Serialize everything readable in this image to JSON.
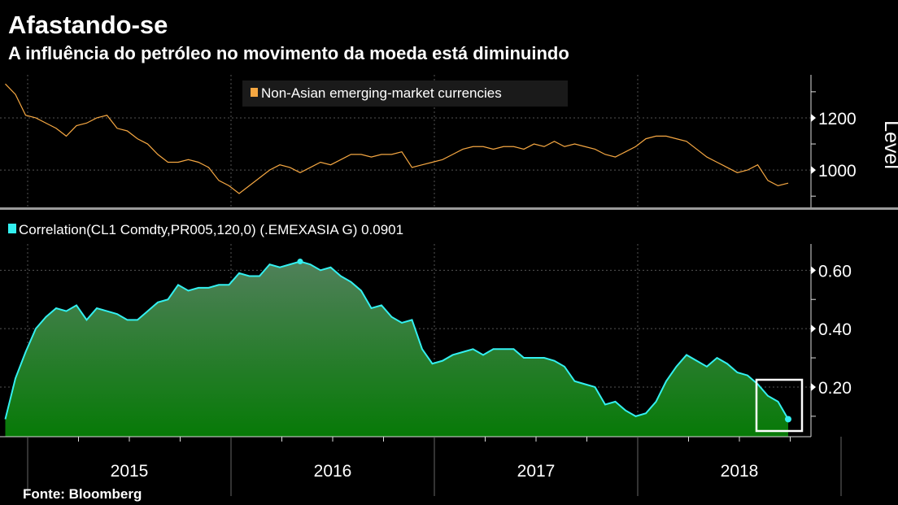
{
  "title": "Afastando-se",
  "subtitle": "A influência do petróleo no movimento da moeda está diminuindo",
  "source": "Fonte: Bloomberg",
  "colors": {
    "level": "#f5a742",
    "corr": "#33f0f0",
    "fill_top": "#50805a",
    "fill_bottom": "#077a07",
    "bg": "#000000"
  },
  "chart_data": [
    {
      "type": "line",
      "series_name": "Non-Asian emerging-market currencies",
      "ylabel": "Level",
      "yticks": [
        1000,
        1200
      ],
      "ytick_labels": [
        "1000",
        "1200"
      ],
      "ylim": [
        857,
        1365
      ],
      "x_start": 2014.89,
      "x_step": 0.05,
      "values": [
        1330,
        1290,
        1210,
        1200,
        1180,
        1160,
        1130,
        1170,
        1180,
        1200,
        1210,
        1160,
        1150,
        1120,
        1100,
        1060,
        1030,
        1030,
        1040,
        1030,
        1010,
        960,
        940,
        910,
        940,
        970,
        1000,
        1020,
        1010,
        990,
        1010,
        1030,
        1020,
        1040,
        1060,
        1060,
        1050,
        1060,
        1060,
        1070,
        1010,
        1020,
        1030,
        1040,
        1060,
        1080,
        1090,
        1090,
        1080,
        1090,
        1090,
        1080,
        1100,
        1090,
        1110,
        1090,
        1100,
        1090,
        1080,
        1060,
        1050,
        1070,
        1090,
        1120,
        1130,
        1130,
        1120,
        1110,
        1080,
        1050,
        1030,
        1010,
        990,
        1000,
        1020,
        960,
        940,
        950
      ]
    },
    {
      "type": "area",
      "series_name": "Correlation(CL1 Comdty,PR005,120,0) (.EMEXASIA G) 0.0901",
      "yticks": [
        0.2,
        0.4,
        0.6
      ],
      "ytick_labels": [
        "0.20",
        "0.40",
        "0.60"
      ],
      "ylim": [
        0.03,
        0.69
      ],
      "x_start": 2014.89,
      "x_step": 0.05,
      "values": [
        0.09,
        0.23,
        0.32,
        0.4,
        0.44,
        0.47,
        0.46,
        0.48,
        0.43,
        0.47,
        0.46,
        0.45,
        0.43,
        0.43,
        0.46,
        0.49,
        0.5,
        0.55,
        0.53,
        0.54,
        0.54,
        0.55,
        0.55,
        0.59,
        0.58,
        0.58,
        0.62,
        0.61,
        0.62,
        0.63,
        0.62,
        0.6,
        0.61,
        0.58,
        0.56,
        0.53,
        0.47,
        0.48,
        0.44,
        0.42,
        0.43,
        0.33,
        0.28,
        0.29,
        0.31,
        0.32,
        0.33,
        0.31,
        0.33,
        0.33,
        0.33,
        0.3,
        0.3,
        0.3,
        0.29,
        0.27,
        0.22,
        0.21,
        0.2,
        0.14,
        0.15,
        0.12,
        0.1,
        0.11,
        0.15,
        0.22,
        0.27,
        0.31,
        0.29,
        0.27,
        0.3,
        0.28,
        0.25,
        0.24,
        0.21,
        0.17,
        0.15,
        0.09
      ],
      "last_value": "0.0901"
    }
  ],
  "x_axis": {
    "labels": [
      "2015",
      "2016",
      "2017",
      "2018"
    ],
    "years": [
      2015,
      2016,
      2017,
      2018
    ]
  }
}
